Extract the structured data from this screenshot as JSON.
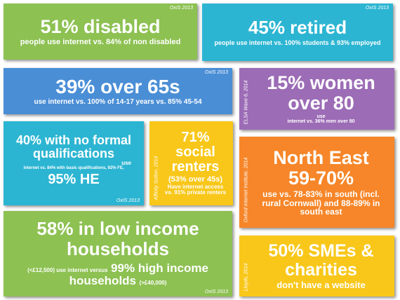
{
  "tiles": [
    {
      "source": "OxIS 2013",
      "headline": "51% disabled",
      "detail": "people use internet vs. 84% of non disabled"
    },
    {
      "source": "OxIS 2013",
      "headline": "45% retired",
      "detail": "people use internet vs. 100% students & 93% employed"
    },
    {
      "source": "OxIS 2013",
      "headline": "39% over 65s",
      "detail": "use internet vs. 100% of 14-17 years vs. 85% 45-54"
    },
    {
      "source": "ELSA Wave 6, 2014",
      "headline": [
        "15% women",
        "over 80"
      ],
      "detail": [
        "use",
        "internet vs. 36% men over 80"
      ]
    },
    {
      "source": "OxIS 2013",
      "headline": [
        "40% with no formal",
        "qualifications"
      ],
      "detail": [
        "use",
        "internet vs. 84% with basic qualifications, 92% FE,"
      ],
      "highlight": "95% HE"
    },
    {
      "source": "Affinity Sutton, 2014",
      "headline": [
        "71%",
        "social",
        "renters"
      ],
      "detail": [
        "(53% over 45s)",
        "Have internet access",
        "vs. 91% private renters"
      ]
    },
    {
      "source": "Oxford Internet Institute, 2014",
      "headline": [
        "North East",
        "59-70%"
      ],
      "detail": [
        "use vs. 78-83% in south (incl.",
        "rural Cornwall) and 88-89% in",
        "south east"
      ]
    },
    {
      "source": "OxIS 2013",
      "headline": [
        "58% in low income",
        "households"
      ],
      "detail": [
        "(<£12,500) use internet versus",
        "99% high income",
        "households",
        "(>£40,000)"
      ]
    },
    {
      "source": "Lloyds, 2014",
      "headline": [
        "50% SMEs &",
        "charities"
      ],
      "detail": "don't have a website"
    }
  ]
}
